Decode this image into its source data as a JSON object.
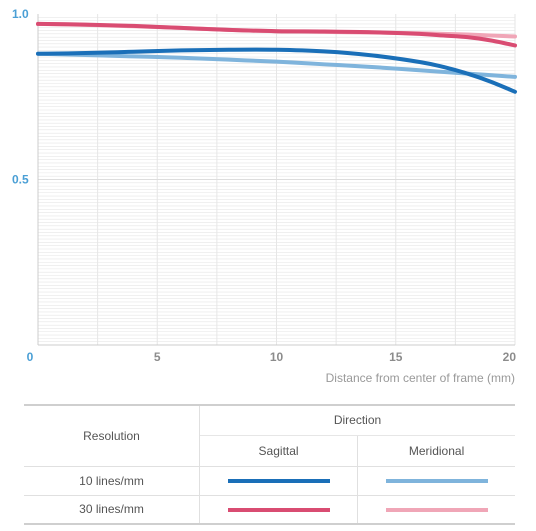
{
  "chart_data": {
    "type": "line",
    "xlabel": "Distance from center of frame (mm)",
    "ylabel": "",
    "xlim": [
      0,
      20
    ],
    "ylim": [
      0,
      1.0
    ],
    "x_ticks": [
      "0",
      "5",
      "10",
      "15",
      "20"
    ],
    "y_ticks": [
      "1.0",
      "0.5"
    ],
    "grid": true,
    "series": [
      {
        "name": "10 lines/mm Sagittal",
        "color": "#1a6fb8",
        "x": [
          0,
          2,
          4,
          6,
          8,
          10,
          12,
          14,
          16,
          17,
          18,
          19,
          20
        ],
        "y": [
          0.88,
          0.882,
          0.886,
          0.89,
          0.892,
          0.892,
          0.887,
          0.875,
          0.855,
          0.84,
          0.82,
          0.795,
          0.765
        ]
      },
      {
        "name": "10 lines/mm Meridional",
        "color": "#7fb4dc",
        "x": [
          0,
          2,
          4,
          6,
          8,
          10,
          12,
          14,
          16,
          18,
          20
        ],
        "y": [
          0.88,
          0.876,
          0.872,
          0.868,
          0.862,
          0.856,
          0.848,
          0.84,
          0.83,
          0.82,
          0.81
        ]
      },
      {
        "name": "30 lines/mm Sagittal",
        "color": "#d94c72",
        "x": [
          0,
          2,
          4,
          6,
          8,
          10,
          12,
          14,
          16,
          17,
          18,
          19,
          20
        ],
        "y": [
          0.97,
          0.968,
          0.964,
          0.958,
          0.952,
          0.948,
          0.947,
          0.945,
          0.94,
          0.935,
          0.93,
          0.92,
          0.905
        ]
      },
      {
        "name": "30 lines/mm Meridional",
        "color": "#f0a6b7",
        "x": [
          0,
          2,
          4,
          6,
          8,
          10,
          12,
          14,
          16,
          18,
          20
        ],
        "y": [
          0.97,
          0.967,
          0.963,
          0.958,
          0.952,
          0.948,
          0.946,
          0.944,
          0.942,
          0.938,
          0.932
        ]
      }
    ]
  },
  "colors": {
    "axis_blue": "#4a9fd5",
    "axis_gray": "#8c8c8c",
    "grid": "#e6e6e6",
    "sagittal_10": "#1a6fb8",
    "meridional_10": "#7fb4dc",
    "sagittal_30": "#d94c72",
    "meridional_30": "#f0a6b7"
  },
  "legend": {
    "resolution_header": "Resolution",
    "direction_header": "Direction",
    "sagittal": "Sagittal",
    "meridional": "Meridional",
    "row1": "10 lines/mm",
    "row2": "30 lines/mm"
  }
}
